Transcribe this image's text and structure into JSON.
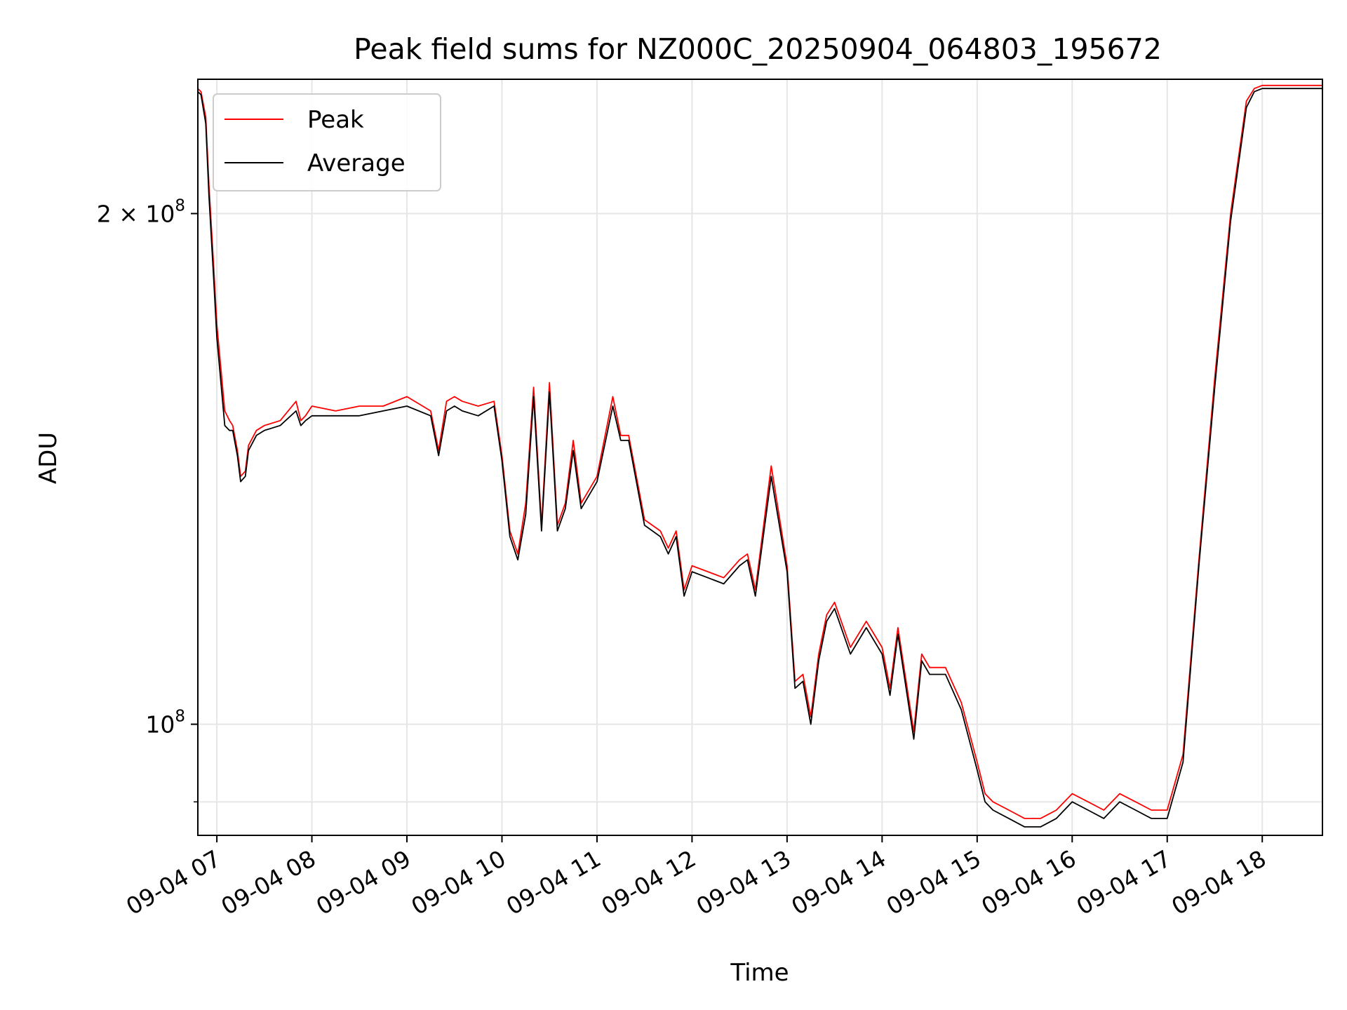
{
  "chart_data": {
    "type": "line",
    "title": "Peak field sums for NZ000C_20250904_064803_195672",
    "xlabel": "Time",
    "ylabel": "ADU",
    "yscale": "log",
    "xlim": [
      "2025-09-04 06:48",
      "2025-09-04 18:38"
    ],
    "ylim": [
      86000000.0,
      240000000.0
    ],
    "x_ticks": [
      "09-04 07",
      "09-04 08",
      "09-04 09",
      "09-04 10",
      "09-04 11",
      "09-04 12",
      "09-04 13",
      "09-04 14",
      "09-04 15",
      "09-04 16",
      "09-04 17",
      "09-04 18"
    ],
    "y_ticks": [
      {
        "value": 100000000,
        "base": "10",
        "exp": "8",
        "prefix": ""
      },
      {
        "value": 200000000,
        "base": "10",
        "exp": "8",
        "prefix": "2 × "
      }
    ],
    "grid": true,
    "legend_position": "top-left",
    "x": [
      "06:48",
      "06:50",
      "06:53",
      "06:55",
      "06:58",
      "07:00",
      "07:05",
      "07:08",
      "07:10",
      "07:13",
      "07:15",
      "07:18",
      "07:20",
      "07:25",
      "07:30",
      "07:40",
      "07:50",
      "07:53",
      "07:56",
      "08:00",
      "08:15",
      "08:30",
      "08:45",
      "09:00",
      "09:15",
      "09:20",
      "09:25",
      "09:30",
      "09:35",
      "09:45",
      "09:55",
      "10:00",
      "10:05",
      "10:10",
      "10:15",
      "10:20",
      "10:25",
      "10:30",
      "10:35",
      "10:40",
      "10:45",
      "10:50",
      "11:00",
      "11:10",
      "11:15",
      "11:20",
      "11:30",
      "11:40",
      "11:45",
      "11:50",
      "11:55",
      "12:00",
      "12:10",
      "12:20",
      "12:30",
      "12:35",
      "12:40",
      "12:50",
      "13:00",
      "13:05",
      "13:10",
      "13:15",
      "13:20",
      "13:25",
      "13:30",
      "13:40",
      "13:50",
      "14:00",
      "14:05",
      "14:10",
      "14:20",
      "14:25",
      "14:30",
      "14:40",
      "14:50",
      "15:00",
      "15:05",
      "15:10",
      "15:20",
      "15:30",
      "15:40",
      "15:50",
      "16:00",
      "16:10",
      "16:20",
      "16:30",
      "16:40",
      "16:50",
      "17:00",
      "17:10",
      "17:20",
      "17:30",
      "17:40",
      "17:50",
      "17:55",
      "18:00",
      "18:05",
      "18:10",
      "18:15",
      "18:20",
      "18:25",
      "18:30",
      "18:35",
      "18:38"
    ],
    "series": [
      {
        "name": "Peak",
        "color": "#ff0000",
        "values": [
          237000000,
          236000000,
          228000000,
          208000000,
          186000000,
          172000000,
          153000000,
          151000000,
          150000000,
          145000000,
          140000000,
          141000000,
          146000000,
          149000000,
          150000000,
          151000000,
          155000000,
          151000000,
          152000000,
          154000000,
          153000000,
          154000000,
          154000000,
          156000000,
          153000000,
          145000000,
          155000000,
          156000000,
          155000000,
          154000000,
          155000000,
          144000000,
          130000000,
          126000000,
          135000000,
          158000000,
          131000000,
          159000000,
          131000000,
          135000000,
          147000000,
          135000000,
          140000000,
          156000000,
          148000000,
          148000000,
          132000000,
          130000000,
          127000000,
          130000000,
          120000000,
          124000000,
          123000000,
          122000000,
          125000000,
          126000000,
          120000000,
          142000000,
          124000000,
          106000000,
          107000000,
          101000000,
          110000000,
          116000000,
          118000000,
          111000000,
          115000000,
          111000000,
          105000000,
          114000000,
          99000000,
          110000000,
          108000000,
          108000000,
          103000000,
          95000000,
          91000000,
          90000000,
          89000000,
          88000000,
          88000000,
          89000000,
          91000000,
          90000000,
          89000000,
          91000000,
          90000000,
          89000000,
          89000000,
          96000000,
          125000000,
          160000000,
          200000000,
          233000000,
          237000000,
          238000000,
          238000000,
          238000000,
          238000000,
          238000000,
          238000000,
          238000000,
          238000000,
          238000000
        ]
      },
      {
        "name": "Average",
        "color": "#000000",
        "values": [
          236000000,
          235000000,
          226000000,
          205000000,
          183000000,
          169000000,
          150000000,
          149000000,
          149000000,
          144000000,
          139000000,
          140000000,
          145000000,
          148000000,
          149000000,
          150000000,
          153000000,
          150000000,
          151000000,
          152000000,
          152000000,
          152000000,
          153000000,
          154000000,
          152000000,
          144000000,
          153000000,
          154000000,
          153000000,
          152000000,
          154000000,
          143000000,
          129000000,
          125000000,
          133000000,
          156000000,
          130000000,
          157000000,
          130000000,
          134000000,
          145000000,
          134000000,
          139000000,
          154000000,
          147000000,
          147000000,
          131000000,
          129000000,
          126000000,
          129000000,
          119000000,
          123000000,
          122000000,
          121000000,
          124000000,
          125000000,
          119000000,
          140000000,
          123000000,
          105000000,
          106000000,
          100000000,
          109000000,
          115000000,
          117000000,
          110000000,
          114000000,
          110000000,
          104000000,
          113000000,
          98000000,
          109000000,
          107000000,
          107000000,
          102000000,
          94000000,
          90000000,
          89000000,
          88000000,
          87000000,
          87000000,
          88000000,
          90000000,
          89000000,
          88000000,
          90000000,
          89000000,
          88000000,
          88000000,
          95000000,
          124000000,
          158000000,
          198000000,
          231000000,
          236000000,
          237000000,
          237000000,
          237000000,
          237000000,
          237000000,
          237000000,
          237000000,
          237000000,
          237000000
        ]
      }
    ]
  }
}
